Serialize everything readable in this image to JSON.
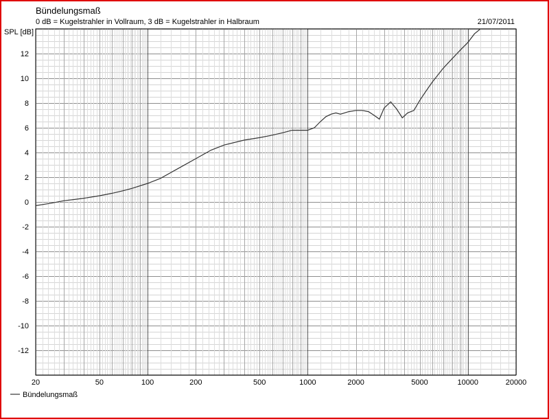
{
  "chart_data": {
    "type": "line",
    "title": "Bündelungsmaß",
    "subtitle": "0 dB = Kugelstrahler in Vollraum, 3 dB = Kugelstrahler in Halbraum",
    "date": "21/07/2011",
    "ylabel": "SPL [dB]",
    "xlabel": "",
    "x_scale": "log",
    "xlim": [
      20,
      20000
    ],
    "ylim": [
      -14,
      14
    ],
    "grid": true,
    "legend_position": "bottom-left",
    "x_tick_labels": [
      "20",
      "50",
      "100",
      "200",
      "500",
      "1000",
      "2000",
      "5000",
      "10000",
      "20000"
    ],
    "y_tick_labels": [
      "12",
      "10",
      "8",
      "6",
      "4",
      "2",
      "0",
      "-2",
      "-4",
      "-6",
      "-8",
      "-10",
      "-12"
    ],
    "series": [
      {
        "name": "Bündelungsmaß",
        "color": "#333333",
        "x": [
          20,
          25,
          30,
          35,
          40,
          50,
          60,
          70,
          80,
          100,
          120,
          150,
          200,
          250,
          300,
          400,
          500,
          600,
          700,
          800,
          900,
          1000,
          1100,
          1200,
          1300,
          1400,
          1500,
          1600,
          1800,
          2000,
          2200,
          2400,
          2600,
          2800,
          3000,
          3300,
          3600,
          3900,
          4200,
          4600,
          5000,
          5500,
          6000,
          7000,
          8000,
          9000,
          10000,
          11000,
          12000
        ],
        "y": [
          -0.3,
          -0.1,
          0.1,
          0.2,
          0.3,
          0.5,
          0.7,
          0.9,
          1.1,
          1.5,
          1.9,
          2.6,
          3.5,
          4.2,
          4.6,
          5.0,
          5.2,
          5.4,
          5.6,
          5.8,
          5.8,
          5.8,
          6.0,
          6.5,
          6.9,
          7.1,
          7.2,
          7.1,
          7.3,
          7.4,
          7.4,
          7.3,
          7.0,
          6.7,
          7.6,
          8.1,
          7.5,
          6.8,
          7.2,
          7.4,
          8.2,
          9.0,
          9.7,
          10.8,
          11.6,
          12.3,
          12.9,
          13.6,
          14.0
        ]
      }
    ]
  }
}
